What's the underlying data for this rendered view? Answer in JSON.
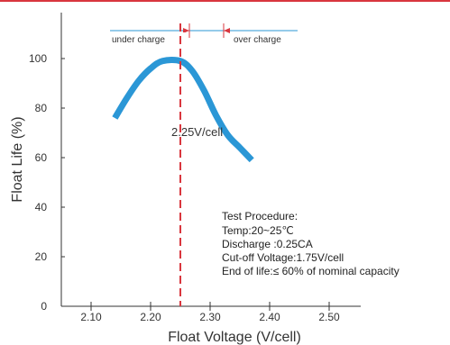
{
  "chart_data": {
    "type": "line",
    "xlabel": "Float Voltage (V/cell)",
    "ylabel": "Float Life (%)",
    "xlim": [
      2.05,
      2.5
    ],
    "ylim": [
      0,
      115
    ],
    "x_ticks": [
      "2.10",
      "2.20",
      "2.30",
      "2.40",
      "2.50"
    ],
    "y_ticks": [
      "0",
      "20",
      "40",
      "60",
      "80",
      "100"
    ],
    "grid": false,
    "series": [
      {
        "color": "#2b97d6",
        "x": [
          2.14,
          2.16,
          2.18,
          2.2,
          2.22,
          2.25,
          2.27,
          2.29,
          2.31,
          2.33,
          2.35,
          2.37
        ],
        "y": [
          76,
          84,
          91,
          96,
          99,
          99,
          95,
          87,
          77,
          69,
          64,
          59
        ]
      }
    ],
    "optimum_line": {
      "x": 2.25,
      "label": "2.25V/cell",
      "color": "#d9363e"
    },
    "bracket": {
      "left_label": "under charge",
      "right_label": "over charge"
    },
    "test_procedure": [
      "Test Procedure:",
      "Temp:20~25℃",
      "Discharge :0.25CA",
      "Cut-off Voltage:1.75V/cell",
      "End of life:≤ 60% of nominal capacity"
    ]
  }
}
